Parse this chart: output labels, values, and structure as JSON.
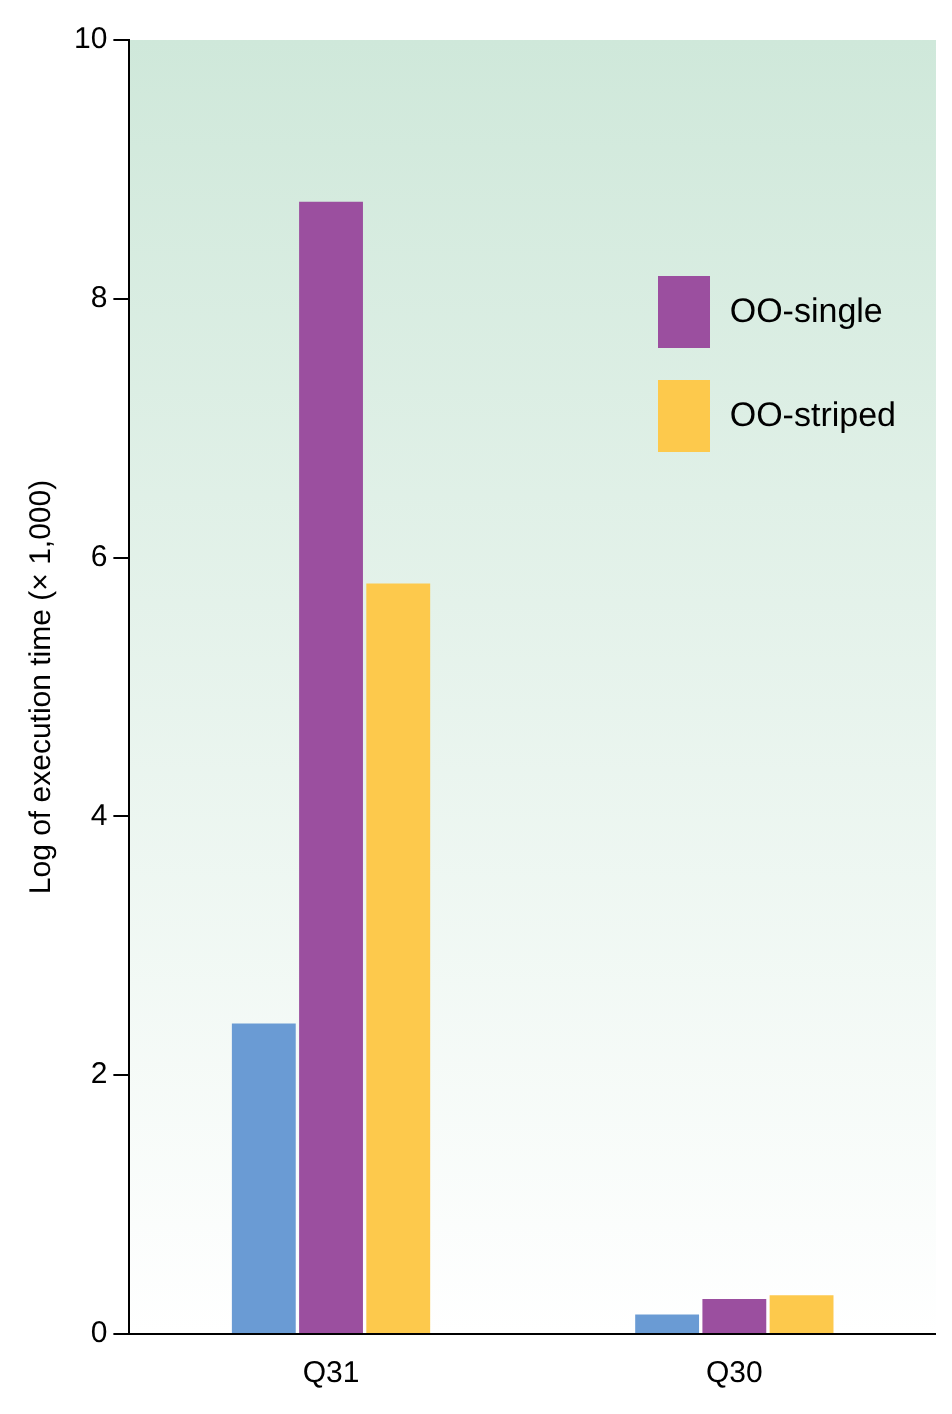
{
  "chart_data": {
    "type": "bar",
    "ylabel": "Log of execution time (× 1,000)",
    "categories": [
      "Q31",
      "Q30"
    ],
    "series": [
      {
        "color": "#6a9bd4",
        "values": [
          2.4,
          0.15
        ]
      },
      {
        "name": "OO-single",
        "color": "#9b4f9f",
        "values": [
          8.75,
          0.27
        ]
      },
      {
        "name": "OO-striped",
        "color": "#fdc94c",
        "values": [
          5.8,
          0.3
        ]
      }
    ],
    "ylim": [
      0,
      10
    ],
    "yticks": [
      0,
      2,
      4,
      6,
      8,
      10
    ],
    "grid": false,
    "legend": "top right"
  }
}
